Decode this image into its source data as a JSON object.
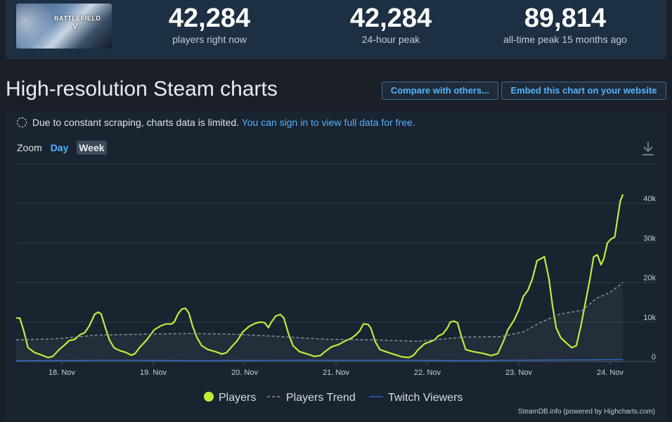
{
  "stats": {
    "now": {
      "value": "42,284",
      "label": "players right now"
    },
    "peak24": {
      "value": "42,284",
      "label": "24-hour peak"
    },
    "alltime": {
      "value": "89,814",
      "label": "all-time peak 15 months ago"
    }
  },
  "game_thumb": {
    "logo_text": "BATTLEFIELD",
    "logo_sub": "V"
  },
  "page_title": "High-resolution Steam charts",
  "buttons": {
    "compare": "Compare with others...",
    "embed": "Embed this chart on your website"
  },
  "notice": {
    "text": "Due to constant scraping, charts data is limited.",
    "link": "You can sign in to view full data for free."
  },
  "zoom": {
    "label": "Zoom",
    "options": [
      "Day",
      "Week"
    ],
    "active": "Week"
  },
  "icons": {
    "download": "download-icon",
    "notice": "dashed-circle-icon"
  },
  "colors": {
    "players": "#beee3b",
    "trend": "#8a8f96",
    "twitch": "#2a68b8",
    "link": "#4fb3ff"
  },
  "credit": "SteamDB.info (powered by Highcharts.com)",
  "chart_data": {
    "type": "line",
    "x_unit": "days (0 = 17 Nov 12:00)",
    "x_ticks": [
      {
        "x": 0.5,
        "label": "18. Nov"
      },
      {
        "x": 1.5,
        "label": "19. Nov"
      },
      {
        "x": 2.5,
        "label": "20. Nov"
      },
      {
        "x": 3.5,
        "label": "21. Nov"
      },
      {
        "x": 4.5,
        "label": "22. Nov"
      },
      {
        "x": 5.5,
        "label": "23. Nov"
      },
      {
        "x": 6.5,
        "label": "24. Nov"
      }
    ],
    "y_ticks": [
      {
        "y": 0,
        "label": "0"
      },
      {
        "y": 10000,
        "label": "10k"
      },
      {
        "y": 20000,
        "label": "20k"
      },
      {
        "y": 30000,
        "label": "30k"
      },
      {
        "y": 40000,
        "label": "40k"
      }
    ],
    "xlim": [
      0,
      7.0
    ],
    "ylim": [
      0,
      50000
    ],
    "grid": true,
    "legend_position": "bottom-center",
    "series": [
      {
        "name": "Players",
        "style": "solid",
        "points": [
          [
            0.0,
            11000
          ],
          [
            0.04,
            11000
          ],
          [
            0.08,
            8000
          ],
          [
            0.13,
            3500
          ],
          [
            0.2,
            2300
          ],
          [
            0.27,
            1700
          ],
          [
            0.35,
            1000
          ],
          [
            0.4,
            1300
          ],
          [
            0.47,
            3000
          ],
          [
            0.53,
            4200
          ],
          [
            0.58,
            5300
          ],
          [
            0.64,
            5600
          ],
          [
            0.7,
            6800
          ],
          [
            0.75,
            7300
          ],
          [
            0.8,
            9000
          ],
          [
            0.86,
            12000
          ],
          [
            0.9,
            12500
          ],
          [
            0.93,
            12000
          ],
          [
            0.97,
            9000
          ],
          [
            1.02,
            5500
          ],
          [
            1.07,
            3500
          ],
          [
            1.13,
            2800
          ],
          [
            1.2,
            2300
          ],
          [
            1.26,
            1600
          ],
          [
            1.3,
            2000
          ],
          [
            1.35,
            3500
          ],
          [
            1.43,
            5500
          ],
          [
            1.51,
            8000
          ],
          [
            1.58,
            9000
          ],
          [
            1.64,
            9500
          ],
          [
            1.7,
            9500
          ],
          [
            1.73,
            10000
          ],
          [
            1.77,
            12000
          ],
          [
            1.81,
            13200
          ],
          [
            1.85,
            13500
          ],
          [
            1.89,
            12300
          ],
          [
            1.93,
            9000
          ],
          [
            1.98,
            6000
          ],
          [
            2.03,
            4000
          ],
          [
            2.1,
            3000
          ],
          [
            2.18,
            2500
          ],
          [
            2.25,
            1900
          ],
          [
            2.3,
            2200
          ],
          [
            2.35,
            3500
          ],
          [
            2.42,
            5300
          ],
          [
            2.48,
            7500
          ],
          [
            2.55,
            8900
          ],
          [
            2.62,
            9700
          ],
          [
            2.68,
            10000
          ],
          [
            2.72,
            9800
          ],
          [
            2.76,
            8600
          ],
          [
            2.79,
            9900
          ],
          [
            2.84,
            11500
          ],
          [
            2.89,
            11900
          ],
          [
            2.93,
            11000
          ],
          [
            2.98,
            7000
          ],
          [
            3.03,
            4000
          ],
          [
            3.1,
            2500
          ],
          [
            3.2,
            1800
          ],
          [
            3.26,
            1300
          ],
          [
            3.33,
            1500
          ],
          [
            3.38,
            2500
          ],
          [
            3.45,
            3700
          ],
          [
            3.53,
            4300
          ],
          [
            3.6,
            5200
          ],
          [
            3.67,
            5900
          ],
          [
            3.72,
            6800
          ],
          [
            3.76,
            7800
          ],
          [
            3.8,
            9500
          ],
          [
            3.85,
            9400
          ],
          [
            3.88,
            8500
          ],
          [
            3.93,
            5000
          ],
          [
            3.98,
            3000
          ],
          [
            4.07,
            2300
          ],
          [
            4.15,
            1700
          ],
          [
            4.22,
            1200
          ],
          [
            4.3,
            1000
          ],
          [
            4.35,
            1600
          ],
          [
            4.4,
            3000
          ],
          [
            4.47,
            4500
          ],
          [
            4.53,
            5000
          ],
          [
            4.58,
            5500
          ],
          [
            4.62,
            6500
          ],
          [
            4.67,
            7000
          ],
          [
            4.72,
            8500
          ],
          [
            4.75,
            10000
          ],
          [
            4.79,
            10200
          ],
          [
            4.83,
            9800
          ],
          [
            4.87,
            6500
          ],
          [
            4.92,
            3000
          ],
          [
            5.0,
            2500
          ],
          [
            5.1,
            2100
          ],
          [
            5.2,
            1500
          ],
          [
            5.27,
            2000
          ],
          [
            5.33,
            5000
          ],
          [
            5.38,
            8000
          ],
          [
            5.45,
            10500
          ],
          [
            5.5,
            13000
          ],
          [
            5.55,
            16500
          ],
          [
            5.6,
            18000
          ],
          [
            5.65,
            21000
          ],
          [
            5.7,
            25500
          ],
          [
            5.74,
            26000
          ],
          [
            5.78,
            26500
          ],
          [
            5.83,
            21000
          ],
          [
            5.87,
            14000
          ],
          [
            5.91,
            8500
          ],
          [
            5.96,
            6000
          ],
          [
            6.03,
            4500
          ],
          [
            6.08,
            3500
          ],
          [
            6.13,
            4000
          ],
          [
            6.18,
            9000
          ],
          [
            6.23,
            15000
          ],
          [
            6.28,
            21000
          ],
          [
            6.32,
            26500
          ],
          [
            6.36,
            27000
          ],
          [
            6.4,
            24500
          ],
          [
            6.43,
            26000
          ],
          [
            6.47,
            30000
          ],
          [
            6.51,
            31000
          ],
          [
            6.55,
            31500
          ],
          [
            6.58,
            36000
          ],
          [
            6.61,
            40500
          ],
          [
            6.64,
            42284
          ]
        ]
      },
      {
        "name": "Players Trend",
        "style": "dashed",
        "points": [
          [
            0.0,
            5500
          ],
          [
            0.4,
            5700
          ],
          [
            0.9,
            6700
          ],
          [
            1.4,
            6900
          ],
          [
            1.9,
            7100
          ],
          [
            2.4,
            6900
          ],
          [
            2.9,
            6300
          ],
          [
            3.4,
            5600
          ],
          [
            3.9,
            5500
          ],
          [
            4.4,
            5100
          ],
          [
            4.9,
            6200
          ],
          [
            5.3,
            6300
          ],
          [
            5.55,
            7500
          ],
          [
            5.75,
            10000
          ],
          [
            5.95,
            12000
          ],
          [
            6.2,
            13000
          ],
          [
            6.35,
            16000
          ],
          [
            6.5,
            17500
          ],
          [
            6.64,
            20000
          ]
        ]
      },
      {
        "name": "Twitch Viewers",
        "style": "solid",
        "points": [
          [
            0.0,
            200
          ],
          [
            1.0,
            300
          ],
          [
            2.0,
            250
          ],
          [
            3.0,
            300
          ],
          [
            4.0,
            300
          ],
          [
            5.0,
            250
          ],
          [
            6.0,
            400
          ],
          [
            6.64,
            500
          ]
        ]
      }
    ]
  }
}
